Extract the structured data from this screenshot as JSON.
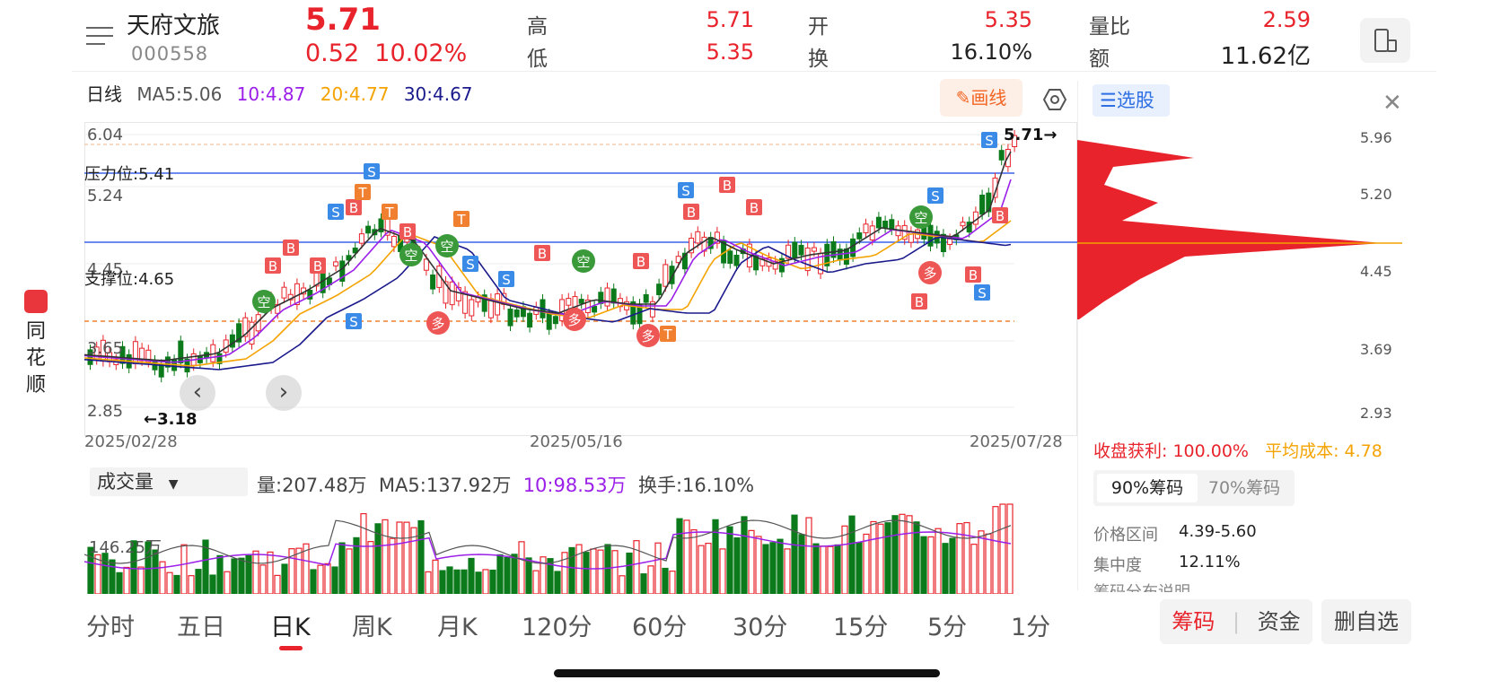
{
  "left_tag": {
    "chars": [
      "同",
      "花",
      "顺"
    ]
  },
  "header": {
    "name": "天府文旅",
    "code": "000558",
    "price": "5.71",
    "change": "0.52",
    "change_pct": "10.02%",
    "high_label": "高",
    "high": "5.71",
    "low_label": "低",
    "low": "5.35",
    "open_label": "开",
    "open": "5.35",
    "turnover_label": "换",
    "turnover": "16.10%",
    "vol_ratio_label": "量比",
    "vol_ratio": "2.59",
    "amount_label": "额",
    "amount": "11.62亿"
  },
  "ma_line": {
    "period": "日线",
    "ma5": "MA5:5.06",
    "ma10": "10:4.87",
    "ma20": "20:4.77",
    "ma30": "30:4.67"
  },
  "toolbar": {
    "draw_label": "画线",
    "xuangu_label": "选股"
  },
  "chart": {
    "y_labels": [
      "6.04",
      "5.24",
      "4.45",
      "3.65",
      "2.85"
    ],
    "resistance": "压力位:5.41",
    "support": "支撑位:4.65",
    "max_label": "5.71→",
    "min_label": "←3.18",
    "dates": [
      "2025/02/28",
      "2025/05/16",
      "2025/07/28"
    ]
  },
  "chip": {
    "y_labels": [
      "5.96",
      "5.20",
      "4.45",
      "3.69",
      "2.93"
    ],
    "profit_label": "收盘获利: 100.00%",
    "avg_cost_label": "平均成本: 4.78",
    "tab90": "90%筹码",
    "tab70": "70%筹码",
    "range_label": "价格区间",
    "range_value": "4.39-5.60",
    "conc_label": "集中度",
    "conc_value": "12.11%",
    "desc_label": "筹码分布说明"
  },
  "volume": {
    "selector": "成交量",
    "vol": "量:207.48万",
    "ma5": "MA5:137.92万",
    "ma10": "10:98.53万",
    "turnover": "换手:16.10%",
    "level": "146.25万"
  },
  "periods": [
    "分时",
    "五日",
    "日K",
    "周K",
    "月K",
    "120分",
    "60分",
    "30分",
    "15分",
    "5分",
    "1分"
  ],
  "bottom_buttons": {
    "chips": "筹码",
    "funds": "资金",
    "delete": "删自选"
  },
  "colors": {
    "up": "#e8232b",
    "down": "#0a7a1a",
    "ma5": "#555555",
    "ma10": "#9b1fe8",
    "ma20": "#f4a300",
    "ma30": "#1a1a8c"
  }
}
